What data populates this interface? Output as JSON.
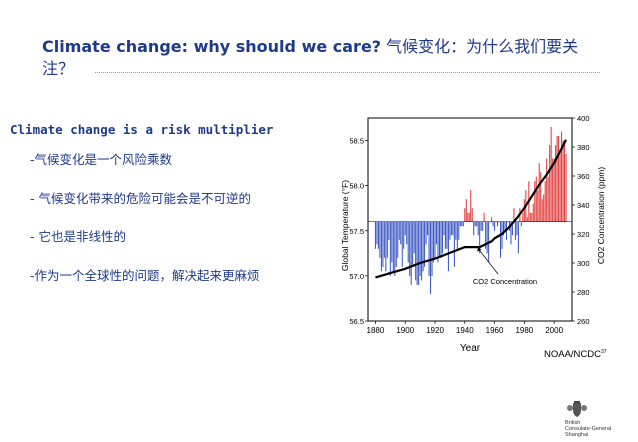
{
  "slide": {
    "title_en": "Climate change: why should we care?",
    "title_zh": "气候变化：为什么我们要关注？",
    "subtitle": "Climate change is a risk multiplier",
    "bullets": [
      "-气候变化是一个风险乘数",
      "- 气候变化带来的危险可能会是不可逆的",
      "- 它也是非线性的",
      "-作为一个全球性的问题，解决起来更麻烦"
    ],
    "source": "NOAA/NCDC",
    "source_sup": "37",
    "crest_lines": [
      "British",
      "Consulate-General",
      "Shanghai"
    ]
  },
  "chart_data": {
    "type": "bar",
    "xlabel": "Year",
    "ylabel_left": "Global Temperature (°F)",
    "ylabel_right": "CO2 Concentration (ppm)",
    "annotation": "CO2 Concentration",
    "x_ticks": [
      1880,
      1900,
      1920,
      1940,
      1960,
      1980,
      2000
    ],
    "y_left_ticks": [
      56.5,
      57.0,
      57.5,
      58.0,
      58.5
    ],
    "y_right_ticks": [
      260,
      280,
      300,
      320,
      340,
      360,
      380,
      400
    ],
    "xlim": [
      1875,
      2012
    ],
    "ylim_left": [
      56.5,
      58.75
    ],
    "ylim_right": [
      260,
      400
    ],
    "baseline_left": 57.6,
    "colors": {
      "above": "#e23a3a",
      "below": "#3a57c4",
      "co2_line": "#000000"
    },
    "temperature": {
      "years": [
        1880,
        1881,
        1882,
        1883,
        1884,
        1885,
        1886,
        1887,
        1888,
        1889,
        1890,
        1891,
        1892,
        1893,
        1894,
        1895,
        1896,
        1897,
        1898,
        1899,
        1900,
        1901,
        1902,
        1903,
        1904,
        1905,
        1906,
        1907,
        1908,
        1909,
        1910,
        1911,
        1912,
        1913,
        1914,
        1915,
        1916,
        1917,
        1918,
        1919,
        1920,
        1921,
        1922,
        1923,
        1924,
        1925,
        1926,
        1927,
        1928,
        1929,
        1930,
        1931,
        1932,
        1933,
        1934,
        1935,
        1936,
        1937,
        1938,
        1939,
        1940,
        1941,
        1942,
        1943,
        1944,
        1945,
        1946,
        1947,
        1948,
        1949,
        1950,
        1951,
        1952,
        1953,
        1954,
        1955,
        1956,
        1957,
        1958,
        1959,
        1960,
        1961,
        1962,
        1963,
        1964,
        1965,
        1966,
        1967,
        1968,
        1969,
        1970,
        1971,
        1972,
        1973,
        1974,
        1975,
        1976,
        1977,
        1978,
        1979,
        1980,
        1981,
        1982,
        1983,
        1984,
        1985,
        1986,
        1987,
        1988,
        1989,
        1990,
        1991,
        1992,
        1993,
        1994,
        1995,
        1996,
        1997,
        1998,
        1999,
        2000,
        2001,
        2002,
        2003,
        2004,
        2005,
        2006,
        2007,
        2008
      ],
      "values": [
        57.3,
        57.35,
        57.3,
        57.2,
        57.05,
        57.1,
        57.2,
        57.05,
        57.2,
        57.4,
        57.0,
        57.15,
        57.05,
        57.0,
        57.1,
        57.2,
        57.4,
        57.35,
        57.1,
        57.3,
        57.45,
        57.35,
        57.15,
        57.0,
        56.9,
        57.1,
        57.25,
        56.95,
        56.9,
        56.9,
        57.0,
        56.95,
        57.05,
        57.1,
        57.35,
        57.45,
        57.0,
        56.8,
        57.0,
        57.15,
        57.2,
        57.35,
        57.15,
        57.2,
        57.2,
        57.25,
        57.45,
        57.3,
        57.3,
        57.05,
        57.4,
        57.45,
        57.45,
        57.1,
        57.4,
        57.3,
        57.4,
        57.55,
        57.55,
        57.55,
        57.75,
        57.85,
        57.7,
        57.7,
        57.95,
        57.75,
        57.45,
        57.55,
        57.55,
        57.45,
        57.25,
        57.5,
        57.5,
        57.7,
        57.3,
        57.25,
        57.15,
        57.6,
        57.65,
        57.55,
        57.5,
        57.6,
        57.55,
        57.6,
        57.2,
        57.3,
        57.45,
        57.5,
        57.4,
        57.6,
        57.5,
        57.35,
        57.45,
        57.75,
        57.4,
        57.45,
        57.25,
        57.75,
        57.55,
        57.7,
        57.85,
        57.95,
        57.65,
        58.05,
        57.7,
        57.7,
        57.8,
        58.05,
        58.1,
        57.95,
        58.25,
        58.15,
        57.85,
        57.9,
        58.05,
        58.3,
        58.1,
        58.45,
        58.65,
        58.3,
        58.3,
        58.45,
        58.55,
        58.55,
        58.4,
        58.6,
        58.5,
        58.5,
        58.35
      ]
    },
    "co2": {
      "years": [
        1880,
        1890,
        1900,
        1910,
        1920,
        1930,
        1940,
        1950,
        1958,
        1960,
        1965,
        1970,
        1975,
        1980,
        1985,
        1990,
        1995,
        2000,
        2005,
        2008
      ],
      "ppm": [
        290,
        293,
        296,
        300,
        303,
        307,
        311,
        311,
        315,
        317,
        320,
        325,
        331,
        338,
        346,
        354,
        361,
        369,
        379,
        385
      ]
    }
  }
}
